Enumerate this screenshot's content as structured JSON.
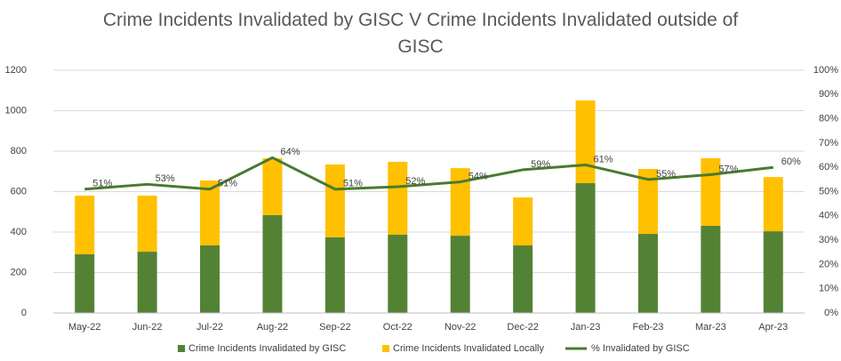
{
  "chart_data": {
    "type": "bar-line",
    "title": "Crime Incidents Invalidated by GISC V Crime Incidents Invalidated outside of GISC",
    "categories": [
      "May-22",
      "Jun-22",
      "Jul-22",
      "Aug-22",
      "Sep-22",
      "Oct-22",
      "Nov-22",
      "Dec-22",
      "Jan-23",
      "Feb-23",
      "Mar-23",
      "Apr-23"
    ],
    "series": [
      {
        "name": "Crime Incidents Invalidated by GISC",
        "color": "#548235",
        "stack": true,
        "values": [
          290,
          303,
          334,
          484,
          374,
          387,
          382,
          334,
          642,
          391,
          431,
          404
        ]
      },
      {
        "name": "Crime Incidents Invalidated Locally",
        "color": "#ffc000",
        "stack": true,
        "values": [
          290,
          277,
          321,
          281,
          360,
          360,
          334,
          237,
          409,
          321,
          334,
          268
        ]
      },
      {
        "name": "% Invalidated by GISC",
        "color": "#4a7a2e",
        "axis": "y2",
        "line": true,
        "values": [
          51,
          53,
          51,
          64,
          51,
          52,
          54,
          59,
          61,
          55,
          57,
          60
        ],
        "value_labels": [
          "51%",
          "53%",
          "51%",
          "64%",
          "51%",
          "52%",
          "54%",
          "59%",
          "61%",
          "55%",
          "57%",
          "60%"
        ]
      }
    ],
    "ylim": [
      0,
      1200
    ],
    "yticks": [
      0,
      200,
      400,
      600,
      800,
      1000,
      1200
    ],
    "y2lim": [
      0,
      100
    ],
    "y2ticks": [
      {
        "value": 0,
        "label": "0%"
      },
      {
        "value": 10,
        "label": "10%"
      },
      {
        "value": 20,
        "label": "20%"
      },
      {
        "value": 30,
        "label": "30%"
      },
      {
        "value": 40,
        "label": "40%"
      },
      {
        "value": 50,
        "label": "50%"
      },
      {
        "value": 60,
        "label": "60%"
      },
      {
        "value": 70,
        "label": "70%"
      },
      {
        "value": 80,
        "label": "80%"
      },
      {
        "value": 90,
        "label": "90%"
      },
      {
        "value": 100,
        "label": "100%"
      }
    ],
    "grid": true,
    "legend": "bottom"
  }
}
